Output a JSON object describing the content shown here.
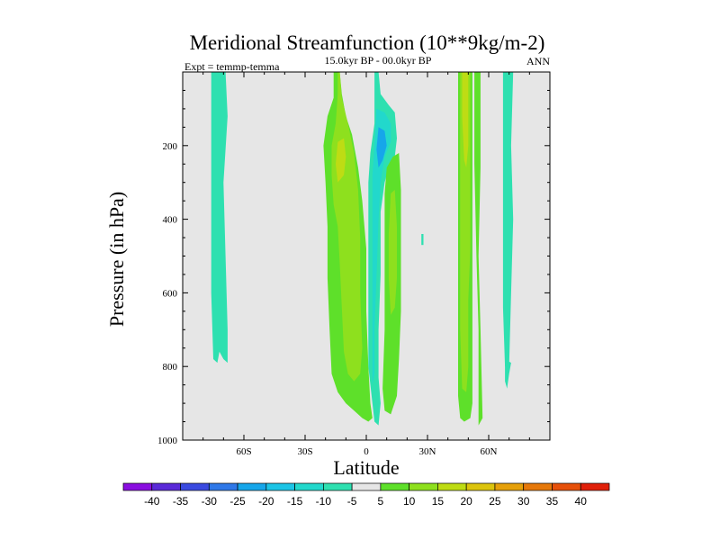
{
  "chart_data": {
    "type": "contour",
    "title": "Meridional Streamfunction (10**9kg/m-2)",
    "subtitle_left": "Expt = temmp-temma",
    "subtitle_center": "15.0kyr BP - 00.0kyr BP",
    "subtitle_right": "ANN",
    "xlabel": "Latitude",
    "ylabel": "Pressure (in hPa)",
    "xlim": [
      -90,
      90
    ],
    "ylim": [
      1000,
      0
    ],
    "x_ticks": [
      {
        "value": -60,
        "label": "60S"
      },
      {
        "value": -30,
        "label": "30S"
      },
      {
        "value": 0,
        "label": "0"
      },
      {
        "value": 30,
        "label": "30N"
      },
      {
        "value": 60,
        "label": "60N"
      }
    ],
    "y_ticks": [
      {
        "value": 200,
        "label": "200"
      },
      {
        "value": 400,
        "label": "400"
      },
      {
        "value": 600,
        "label": "600"
      },
      {
        "value": 800,
        "label": "800"
      },
      {
        "value": 1000,
        "label": "1000"
      }
    ],
    "colorbar": {
      "labels": [
        "-40",
        "-35",
        "-30",
        "-25",
        "-20",
        "-15",
        "-10",
        "-5",
        "5",
        "10",
        "15",
        "20",
        "25",
        "30",
        "35",
        "40"
      ],
      "colors": [
        "#8a0ee0",
        "#5a2ad8",
        "#3a4ae0",
        "#2f78e8",
        "#16a6ea",
        "#1cc4e6",
        "#22d8cc",
        "#2ee0b0",
        "#e6e6e6",
        "#5ee02a",
        "#8ee01e",
        "#bedc14",
        "#dcc40c",
        "#e6a00a",
        "#e6780a",
        "#e6500a",
        "#e0200a"
      ]
    },
    "contour_regions": [
      {
        "name": "cell-68S-upper",
        "fill": "#2ee0b0",
        "points": [
          [
            -76,
            0
          ],
          [
            -69,
            0
          ],
          [
            -68,
            120
          ],
          [
            -70,
            300
          ],
          [
            -69,
            500
          ],
          [
            -68,
            700
          ],
          [
            -68,
            790
          ],
          [
            -70,
            780
          ],
          [
            -72,
            760
          ],
          [
            -73,
            790
          ],
          [
            -75,
            780
          ],
          [
            -76,
            600
          ],
          [
            -76,
            300
          ],
          [
            -76,
            0
          ]
        ]
      },
      {
        "name": "cell-68S-foot",
        "fill": "#2ee0b0",
        "points": [
          [
            -74,
            0
          ],
          [
            -74,
            100
          ],
          [
            -74,
            200
          ],
          [
            -73,
            0
          ]
        ]
      },
      {
        "name": "hadley-south-outer",
        "fill": "#5ee02a",
        "points": [
          [
            -16,
            0
          ],
          [
            -13,
            0
          ],
          [
            -12,
            60
          ],
          [
            -10,
            120
          ],
          [
            -7,
            170
          ],
          [
            -4,
            260
          ],
          [
            -2,
            350
          ],
          [
            0,
            480
          ],
          [
            0,
            650
          ],
          [
            1,
            800
          ],
          [
            2,
            900
          ],
          [
            3,
            940
          ],
          [
            1,
            950
          ],
          [
            -2,
            940
          ],
          [
            -6,
            920
          ],
          [
            -10,
            900
          ],
          [
            -14,
            870
          ],
          [
            -17,
            820
          ],
          [
            -18,
            700
          ],
          [
            -19,
            560
          ],
          [
            -19,
            420
          ],
          [
            -20,
            300
          ],
          [
            -21,
            200
          ],
          [
            -19,
            120
          ],
          [
            -16,
            70
          ],
          [
            -16,
            0
          ]
        ]
      },
      {
        "name": "hadley-south-inner",
        "fill": "#8ee01e",
        "points": [
          [
            -14,
            0
          ],
          [
            -13,
            0
          ],
          [
            -12,
            70
          ],
          [
            -9,
            140
          ],
          [
            -6,
            220
          ],
          [
            -4,
            320
          ],
          [
            -3,
            450
          ],
          [
            -3,
            600
          ],
          [
            -2,
            750
          ],
          [
            -3,
            820
          ],
          [
            -6,
            840
          ],
          [
            -9,
            820
          ],
          [
            -11,
            760
          ],
          [
            -12,
            640
          ],
          [
            -13,
            520
          ],
          [
            -14,
            420
          ],
          [
            -16,
            360
          ],
          [
            -17,
            280
          ],
          [
            -17,
            200
          ],
          [
            -15,
            140
          ],
          [
            -14,
            60
          ],
          [
            -14,
            0
          ]
        ]
      },
      {
        "name": "hadley-south-core",
        "fill": "#bedc14",
        "points": [
          [
            -14,
            190
          ],
          [
            -11,
            180
          ],
          [
            -10,
            230
          ],
          [
            -11,
            280
          ],
          [
            -14,
            300
          ],
          [
            -15,
            250
          ],
          [
            -14,
            190
          ]
        ]
      },
      {
        "name": "equatorial-negative-outer",
        "fill": "#2ee0b0",
        "points": [
          [
            4,
            0
          ],
          [
            6,
            0
          ],
          [
            7,
            60
          ],
          [
            11,
            90
          ],
          [
            14,
            110
          ],
          [
            15,
            180
          ],
          [
            14,
            230
          ],
          [
            11,
            260
          ],
          [
            9,
            300
          ],
          [
            7,
            380
          ],
          [
            7,
            550
          ],
          [
            6,
            700
          ],
          [
            6,
            830
          ],
          [
            7,
            900
          ],
          [
            6,
            960
          ],
          [
            4,
            950
          ],
          [
            3,
            900
          ],
          [
            1,
            800
          ],
          [
            1,
            620
          ],
          [
            1,
            420
          ],
          [
            1,
            300
          ],
          [
            2,
            220
          ],
          [
            4,
            140
          ],
          [
            4,
            0
          ]
        ]
      },
      {
        "name": "equatorial-negative-mid",
        "fill": "#22d8cc",
        "points": [
          [
            5,
            100
          ],
          [
            9,
            110
          ],
          [
            12,
            140
          ],
          [
            12,
            190
          ],
          [
            9,
            230
          ],
          [
            7,
            300
          ],
          [
            6,
            400
          ],
          [
            5,
            560
          ],
          [
            4,
            700
          ],
          [
            4,
            820
          ],
          [
            3,
            850
          ],
          [
            3,
            700
          ],
          [
            3,
            550
          ],
          [
            3,
            400
          ],
          [
            3,
            280
          ],
          [
            4,
            200
          ],
          [
            5,
            100
          ]
        ]
      },
      {
        "name": "equatorial-negative-core",
        "fill": "#16a6ea",
        "points": [
          [
            6,
            150
          ],
          [
            9,
            160
          ],
          [
            10,
            200
          ],
          [
            8,
            240
          ],
          [
            6,
            260
          ],
          [
            5,
            210
          ],
          [
            6,
            150
          ]
        ]
      },
      {
        "name": "ferrel-north-green",
        "fill": "#5ee02a",
        "points": [
          [
            10,
            260
          ],
          [
            13,
            230
          ],
          [
            16,
            220
          ],
          [
            17,
            320
          ],
          [
            17,
            500
          ],
          [
            17,
            650
          ],
          [
            16,
            780
          ],
          [
            15,
            880
          ],
          [
            12,
            930
          ],
          [
            9,
            920
          ],
          [
            8,
            860
          ],
          [
            9,
            700
          ],
          [
            9,
            560
          ],
          [
            9,
            420
          ],
          [
            9,
            330
          ],
          [
            10,
            260
          ]
        ]
      },
      {
        "name": "ferrel-north-yellow",
        "fill": "#8ee01e",
        "points": [
          [
            12,
            330
          ],
          [
            14,
            320
          ],
          [
            15,
            420
          ],
          [
            15,
            560
          ],
          [
            14,
            640
          ],
          [
            12,
            660
          ],
          [
            11,
            560
          ],
          [
            11,
            440
          ],
          [
            12,
            330
          ]
        ]
      },
      {
        "name": "cell-45N-outer",
        "fill": "#5ee02a",
        "points": [
          [
            45,
            0
          ],
          [
            52,
            0
          ],
          [
            52,
            140
          ],
          [
            52,
            400
          ],
          [
            52,
            700
          ],
          [
            52,
            900
          ],
          [
            51,
            940
          ],
          [
            48,
            950
          ],
          [
            46,
            940
          ],
          [
            45,
            880
          ],
          [
            45,
            600
          ],
          [
            45,
            300
          ],
          [
            45,
            0
          ]
        ]
      },
      {
        "name": "cell-45N-inner",
        "fill": "#8ee01e",
        "points": [
          [
            46,
            0
          ],
          [
            51,
            0
          ],
          [
            51,
            200
          ],
          [
            51,
            480
          ],
          [
            50,
            620
          ],
          [
            50,
            800
          ],
          [
            49,
            870
          ],
          [
            47,
            860
          ],
          [
            46,
            700
          ],
          [
            46,
            500
          ],
          [
            46,
            250
          ],
          [
            46,
            0
          ]
        ]
      },
      {
        "name": "cell-45N-core",
        "fill": "#bedc14",
        "points": [
          [
            47,
            0
          ],
          [
            50,
            0
          ],
          [
            50,
            200
          ],
          [
            49,
            260
          ],
          [
            48,
            240
          ],
          [
            47,
            120
          ],
          [
            47,
            0
          ]
        ]
      },
      {
        "name": "cell-54N",
        "fill": "#5ee02a",
        "points": [
          [
            53,
            0
          ],
          [
            56,
            0
          ],
          [
            56,
            260
          ],
          [
            55,
            500
          ],
          [
            56,
            700
          ],
          [
            57,
            940
          ],
          [
            55,
            960
          ],
          [
            55,
            700
          ],
          [
            54,
            500
          ],
          [
            53,
            250
          ],
          [
            53,
            0
          ]
        ]
      },
      {
        "name": "cell-60N",
        "fill": "#2ee0b0",
        "points": [
          [
            67,
            0
          ],
          [
            72,
            0
          ],
          [
            71,
            200
          ],
          [
            72,
            400
          ],
          [
            71,
            600
          ],
          [
            70,
            800
          ],
          [
            68,
            800
          ],
          [
            67,
            640
          ],
          [
            67,
            400
          ],
          [
            67,
            200
          ],
          [
            67,
            0
          ]
        ]
      },
      {
        "name": "cell-60N-tail",
        "fill": "#2ee0b0",
        "points": [
          [
            68,
            780
          ],
          [
            71,
            790
          ],
          [
            70,
            820
          ],
          [
            69,
            860
          ],
          [
            68,
            840
          ],
          [
            68,
            780
          ]
        ]
      },
      {
        "name": "cell-30N-dot",
        "fill": "#2ee0b0",
        "points": [
          [
            27,
            440
          ],
          [
            28,
            440
          ],
          [
            28,
            470
          ],
          [
            27,
            470
          ],
          [
            27,
            440
          ]
        ]
      }
    ]
  }
}
